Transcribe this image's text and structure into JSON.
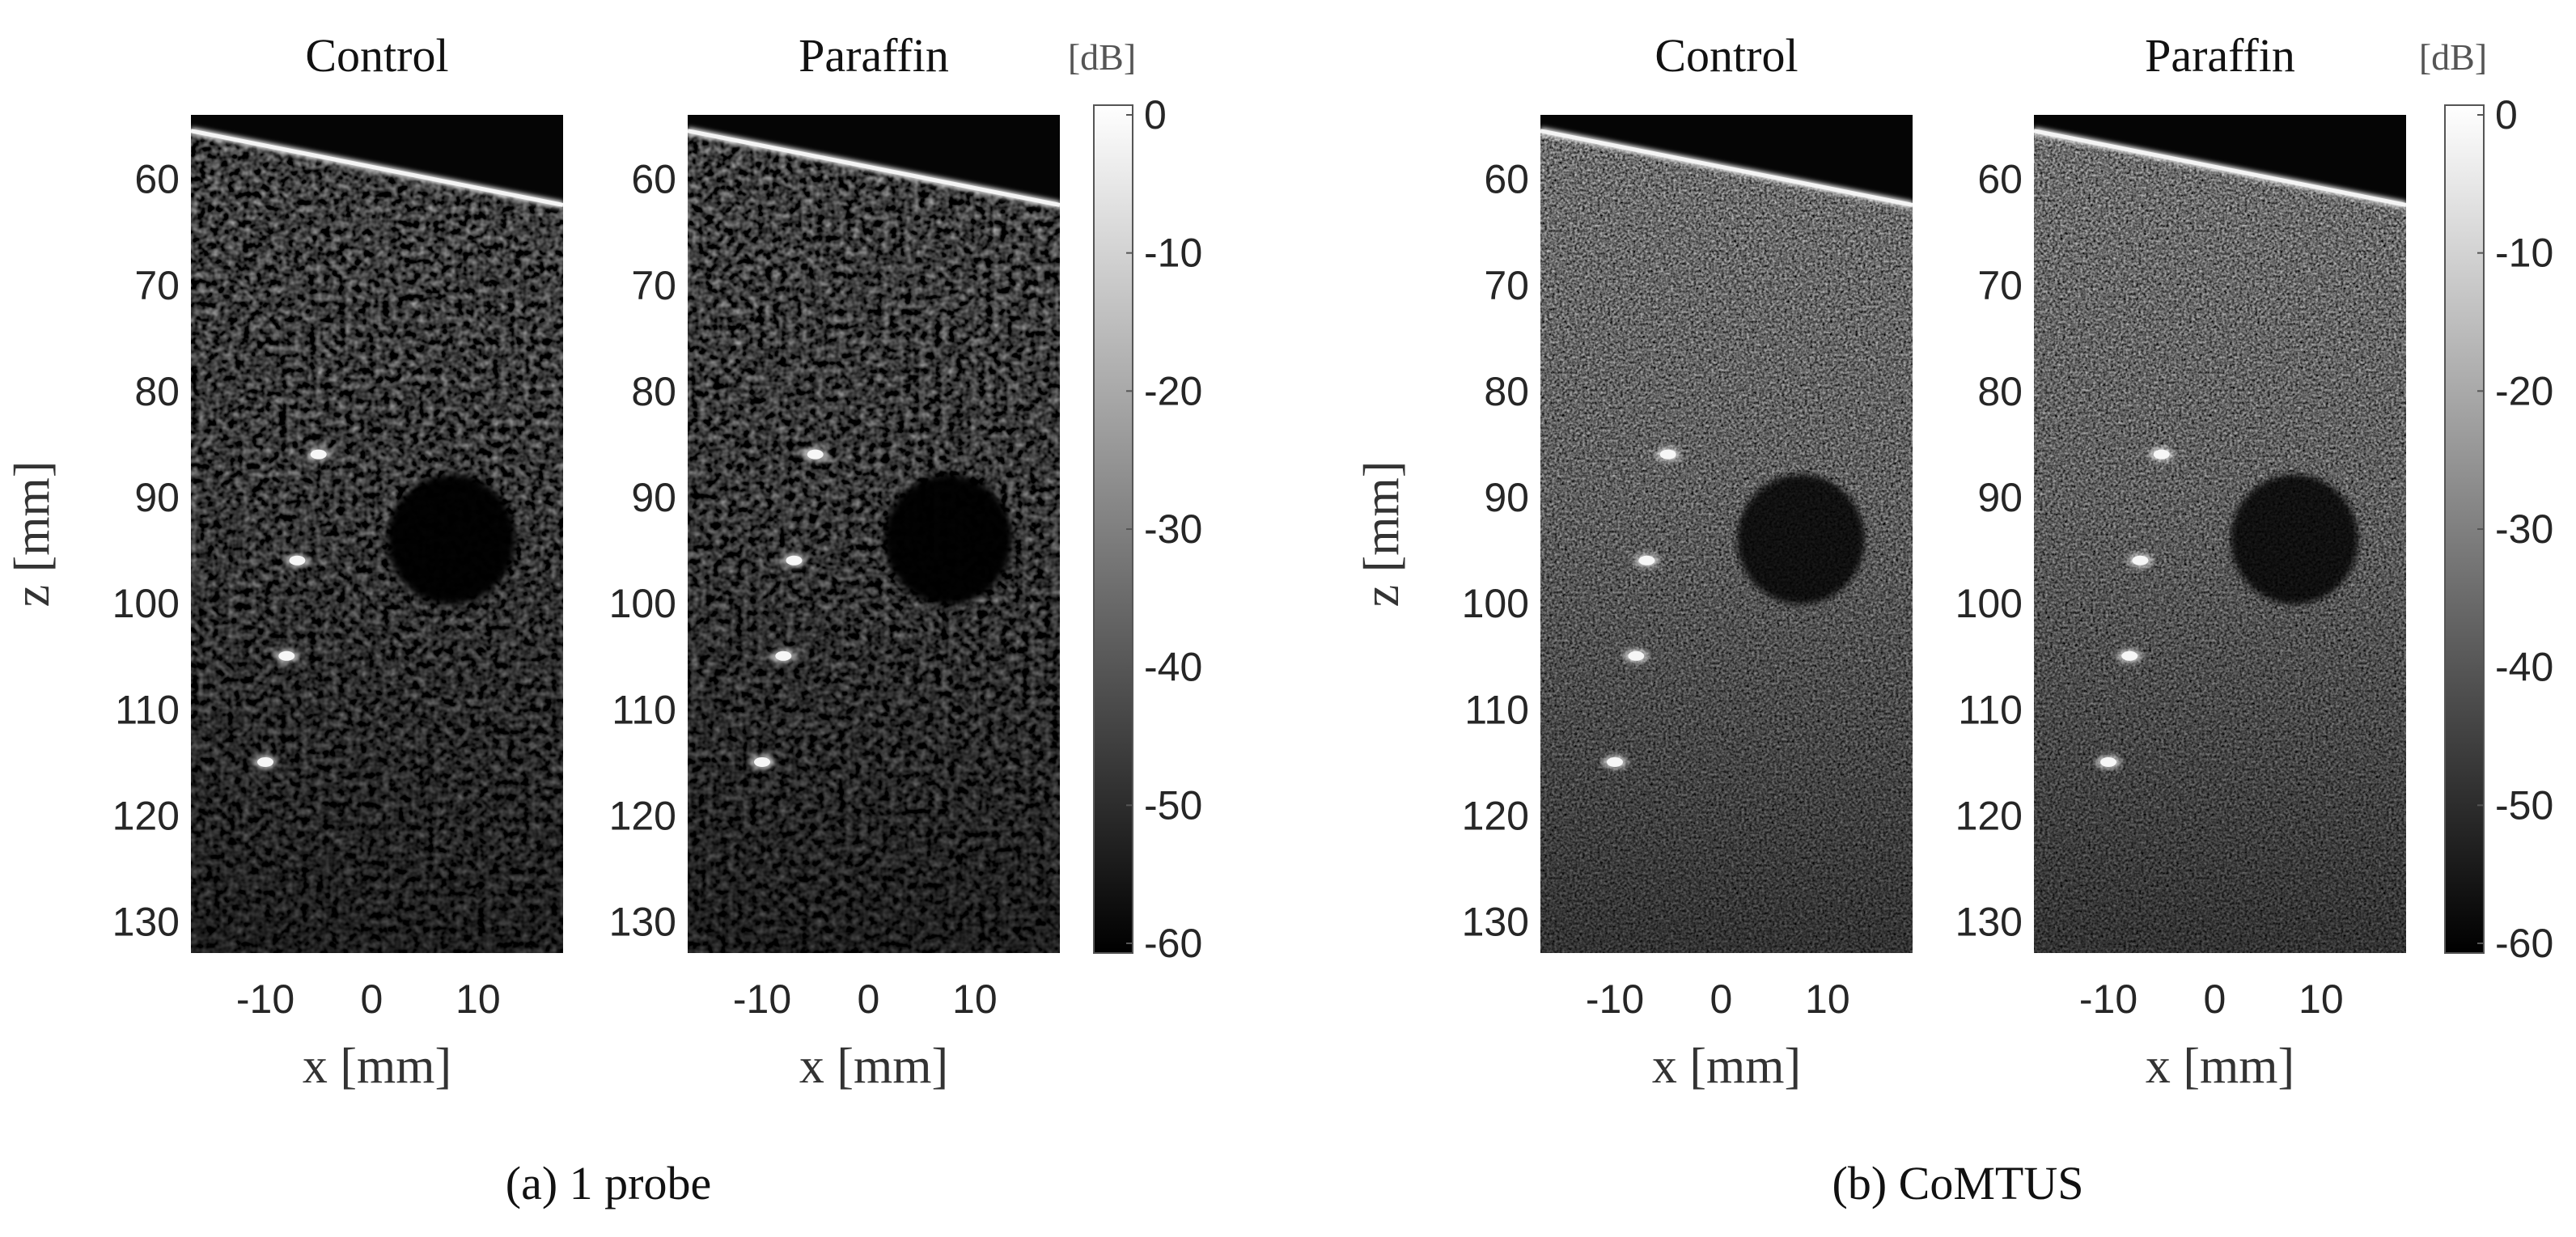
{
  "figure": {
    "panel_groups": [
      {
        "caption": "(a) 1 probe",
        "colorbar_unit": "[dB]",
        "colorbar_ticks": [
          "0",
          "-10",
          "-20",
          "-30",
          "-40",
          "-50",
          "-60"
        ],
        "images": [
          {
            "title": "Control",
            "style": "standard"
          },
          {
            "title": "Paraffin",
            "style": "standard"
          }
        ]
      },
      {
        "caption": "(b) CoMTUS",
        "colorbar_unit": "[dB]",
        "colorbar_ticks": [
          "0",
          "-10",
          "-20",
          "-30",
          "-40",
          "-50",
          "-60"
        ],
        "images": [
          {
            "title": "Control",
            "style": "comtus"
          },
          {
            "title": "Paraffin",
            "style": "comtus"
          }
        ]
      }
    ],
    "axes": {
      "x_label": "x [mm]",
      "z_label": "z [mm]",
      "x_ticks": [
        -10,
        0,
        10
      ],
      "z_ticks": [
        60,
        70,
        80,
        90,
        100,
        110,
        120,
        130
      ],
      "x_range_mm": [
        -17,
        18
      ],
      "z_range_mm": [
        54,
        133
      ]
    },
    "phantom": {
      "point_targets_mm": [
        {
          "x": -5,
          "z": 86
        },
        {
          "x": -7,
          "z": 96
        },
        {
          "x": -8,
          "z": 105
        },
        {
          "x": -10,
          "z": 115
        }
      ],
      "cyst": {
        "center_x_mm": 7.5,
        "center_z_mm": 94,
        "radius_mm": 6
      },
      "surface_line_mm": {
        "x0": -17,
        "z0": 55.5,
        "x1": 18,
        "z1": 62.5
      }
    },
    "colors": {
      "background": "#ffffff",
      "text": "#262626",
      "image_base": "#050505"
    }
  }
}
